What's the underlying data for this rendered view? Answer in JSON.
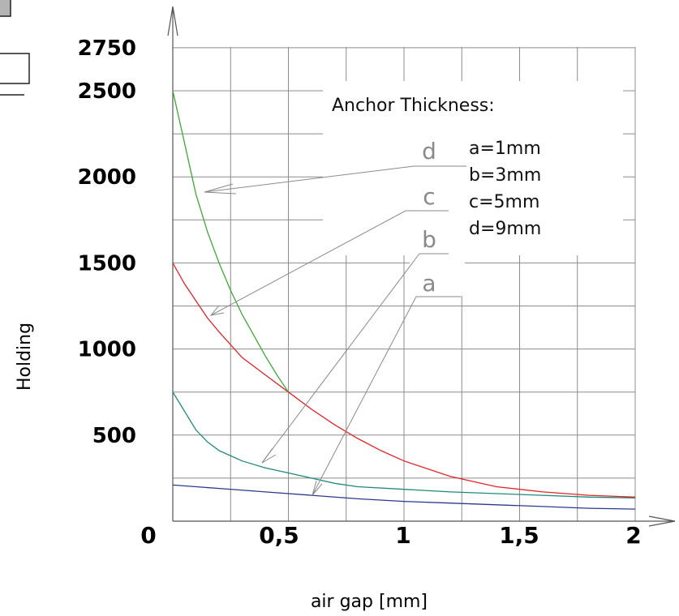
{
  "chart_data": {
    "type": "line",
    "xlabel": "air gap [mm]",
    "ylabel": "Holding",
    "xlim": [
      0,
      2
    ],
    "ylim": [
      0,
      2750
    ],
    "x_ticks": [
      "0",
      "0,5",
      "1",
      "1,5",
      "2"
    ],
    "y_ticks": [
      "500",
      "1000",
      "1500",
      "2000",
      "2500",
      "2750"
    ],
    "grid": true,
    "legend": {
      "title": "Anchor Thickness:",
      "entries": [
        "a=1mm",
        "b=3mm",
        "c=5mm",
        "d=9mm"
      ],
      "position": "top-right"
    },
    "series": [
      {
        "name": "a",
        "color": "#2b3a8f",
        "x": [
          0,
          0.2,
          0.4,
          0.6,
          0.8,
          1.0,
          1.2,
          1.4,
          1.6,
          1.8,
          2.0
        ],
        "values": [
          210,
          190,
          170,
          150,
          130,
          115,
          105,
          95,
          85,
          75,
          70
        ]
      },
      {
        "name": "b",
        "color": "#1f8a7a",
        "x": [
          0,
          0.05,
          0.1,
          0.15,
          0.2,
          0.3,
          0.4,
          0.5,
          0.6,
          0.7,
          0.8,
          1.0,
          1.2,
          1.4,
          1.6,
          1.8,
          2.0
        ],
        "values": [
          750,
          640,
          530,
          460,
          410,
          350,
          310,
          280,
          250,
          220,
          200,
          185,
          170,
          160,
          150,
          140,
          135
        ]
      },
      {
        "name": "c",
        "color": "#e0242a",
        "x": [
          0,
          0.05,
          0.1,
          0.15,
          0.2,
          0.3,
          0.4,
          0.5,
          0.6,
          0.7,
          0.8,
          0.9,
          1.0,
          1.2,
          1.4,
          1.6,
          1.8,
          2.0
        ],
        "values": [
          1500,
          1380,
          1280,
          1180,
          1100,
          950,
          850,
          750,
          650,
          560,
          480,
          410,
          350,
          260,
          200,
          170,
          150,
          140
        ]
      },
      {
        "name": "d",
        "color": "#3caa35",
        "x": [
          0,
          0.05,
          0.1,
          0.15,
          0.2,
          0.25,
          0.3,
          0.35,
          0.4,
          0.45,
          0.5
        ],
        "values": [
          2500,
          2200,
          1900,
          1680,
          1500,
          1340,
          1200,
          1080,
          960,
          850,
          750
        ]
      }
    ],
    "series_letters": [
      "d",
      "c",
      "b",
      "a"
    ]
  }
}
